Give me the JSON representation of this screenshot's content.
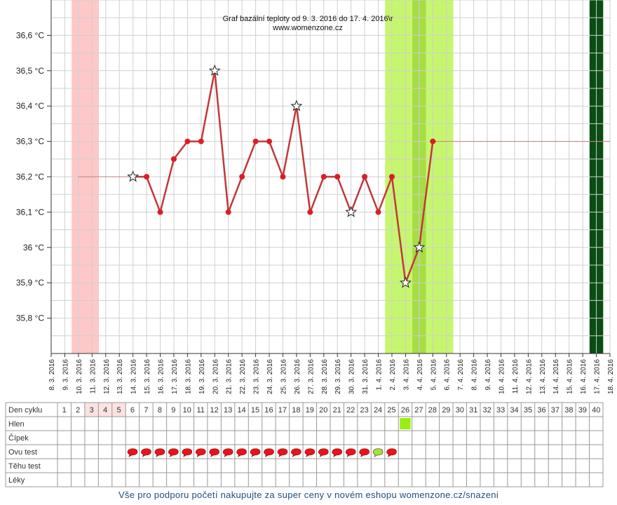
{
  "chart_data": {
    "type": "line",
    "title": "Graf bazální teploty od 9. 3. 2016 do 17. 4. 2016\\r",
    "subtitle": "www.womenzone.cz",
    "ylim": [
      35.7,
      36.7
    ],
    "y_ticks": [
      35.8,
      35.9,
      36.0,
      36.1,
      36.2,
      36.3,
      36.4,
      36.5,
      36.6
    ],
    "y_tick_labels": [
      "35,8 °C",
      "35,9 °C",
      "36 °C",
      "36,1 °C",
      "36,2 °C",
      "36,3 °C",
      "36,4 °C",
      "36,5 °C",
      "36,6 °C"
    ],
    "x_labels": [
      "8. 3. 2016",
      "9. 3. 2016",
      "10. 3. 2016",
      "11. 3. 2016",
      "12. 3. 2016",
      "13. 3. 2016",
      "14. 3. 2016",
      "15. 3. 2016",
      "16. 3. 2016",
      "17. 3. 2016",
      "18. 3. 2016",
      "19. 3. 2016",
      "20. 3. 2016",
      "21. 3. 2016",
      "22. 3. 2016",
      "23. 3. 2016",
      "24. 3. 2016",
      "25. 3. 2016",
      "26. 3. 2016",
      "27. 3. 2016",
      "28. 3. 2016",
      "29. 3. 2016",
      "30. 3. 2016",
      "31. 3. 2016",
      "1. 4. 2016",
      "2. 4. 2016",
      "3. 4. 2016",
      "4. 4. 2016",
      "5. 4. 2016",
      "6. 4. 2016",
      "7. 4. 2016",
      "8. 4. 2016",
      "9. 4. 2016",
      "10. 4. 2016",
      "11. 4. 2016",
      "12. 4. 2016",
      "13. 4. 2016",
      "14. 4. 2016",
      "15. 4. 2016",
      "16. 4. 2016",
      "17. 4. 2016",
      "18. 4. 2016"
    ],
    "grid": true,
    "series": [
      {
        "color": "#c0393b",
        "points": [
          {
            "day": 6,
            "value": 36.2,
            "star": true
          },
          {
            "day": 7,
            "value": 36.2,
            "star": false
          },
          {
            "day": 8,
            "value": 36.1,
            "star": false
          },
          {
            "day": 9,
            "value": 36.25,
            "star": false
          },
          {
            "day": 10,
            "value": 36.3,
            "star": false
          },
          {
            "day": 11,
            "value": 36.3,
            "star": false
          },
          {
            "day": 12,
            "value": 36.5,
            "star": true
          },
          {
            "day": 13,
            "value": 36.1,
            "star": false
          },
          {
            "day": 14,
            "value": 36.2,
            "star": false
          },
          {
            "day": 15,
            "value": 36.3,
            "star": false
          },
          {
            "day": 16,
            "value": 36.3,
            "star": false
          },
          {
            "day": 17,
            "value": 36.2,
            "star": false
          },
          {
            "day": 18,
            "value": 36.4,
            "star": true
          },
          {
            "day": 19,
            "value": 36.1,
            "star": false
          },
          {
            "day": 20,
            "value": 36.2,
            "star": false
          },
          {
            "day": 21,
            "value": 36.2,
            "star": false
          },
          {
            "day": 22,
            "value": 36.1,
            "star": true
          },
          {
            "day": 23,
            "value": 36.2,
            "star": false
          },
          {
            "day": 24,
            "value": 36.1,
            "star": false
          },
          {
            "day": 25,
            "value": 36.2,
            "star": false
          },
          {
            "day": 26,
            "value": 35.9,
            "star": true
          },
          {
            "day": 27,
            "value": 36.0,
            "star": true
          },
          {
            "day": 28,
            "value": 36.3,
            "star": false
          }
        ]
      }
    ],
    "coverline_before": {
      "from_day": 2,
      "to_day": 6,
      "value": 36.2
    },
    "coverline_after": {
      "from_day": 28,
      "to_day": 41,
      "value": 36.3
    },
    "bands": [
      {
        "kind": "menstruation",
        "from_day": 1,
        "to_day": 3,
        "color": "#ffc8c8"
      },
      {
        "kind": "fertile",
        "from_day": 24,
        "to_day": 29,
        "color": "#c6f66e"
      },
      {
        "kind": "fertile-peak",
        "from_day": 26,
        "to_day": 27,
        "color": "#a6dd44"
      },
      {
        "kind": "next-period",
        "from_day": 39,
        "to_day": 40,
        "color": "#0a4d13"
      }
    ]
  },
  "cycle_table": {
    "row_labels": [
      "Den cyklu",
      "Hlen",
      "Čípek",
      "Ovu test",
      "Těhu test",
      "Léky"
    ],
    "day_numbers": [
      "1",
      "2",
      "3",
      "4",
      "5",
      "6",
      "7",
      "8",
      "9",
      "10",
      "11",
      "12",
      "13",
      "14",
      "15",
      "16",
      "17",
      "18",
      "19",
      "20",
      "21",
      "22",
      "23",
      "24",
      "25",
      "26",
      "27",
      "28",
      "29",
      "30",
      "31",
      "32",
      "33",
      "34",
      "35",
      "36",
      "37",
      "38",
      "39",
      "40"
    ],
    "highlighted_days": [
      3,
      4,
      5
    ],
    "highlight_color": "#fde2e2",
    "hlen_marks": [
      {
        "day": 26,
        "color": "#99ee11"
      }
    ],
    "ovu_tests": [
      {
        "day": 6,
        "result": "negative"
      },
      {
        "day": 7,
        "result": "negative"
      },
      {
        "day": 8,
        "result": "negative"
      },
      {
        "day": 9,
        "result": "negative"
      },
      {
        "day": 10,
        "result": "negative"
      },
      {
        "day": 11,
        "result": "negative"
      },
      {
        "day": 12,
        "result": "negative"
      },
      {
        "day": 13,
        "result": "negative"
      },
      {
        "day": 14,
        "result": "negative"
      },
      {
        "day": 15,
        "result": "negative"
      },
      {
        "day": 16,
        "result": "negative"
      },
      {
        "day": 17,
        "result": "negative"
      },
      {
        "day": 18,
        "result": "negative"
      },
      {
        "day": 19,
        "result": "negative"
      },
      {
        "day": 20,
        "result": "negative"
      },
      {
        "day": 21,
        "result": "negative"
      },
      {
        "day": 22,
        "result": "negative"
      },
      {
        "day": 23,
        "result": "negative"
      },
      {
        "day": 24,
        "result": "positive"
      },
      {
        "day": 25,
        "result": "negative"
      }
    ],
    "ovu_colors": {
      "negative": "#e8141c",
      "positive": "#9be63a"
    }
  },
  "footer": {
    "text": "Vše pro podporu početí nakupujte za super ceny v novém eshopu womenzone.cz/snazeni"
  }
}
